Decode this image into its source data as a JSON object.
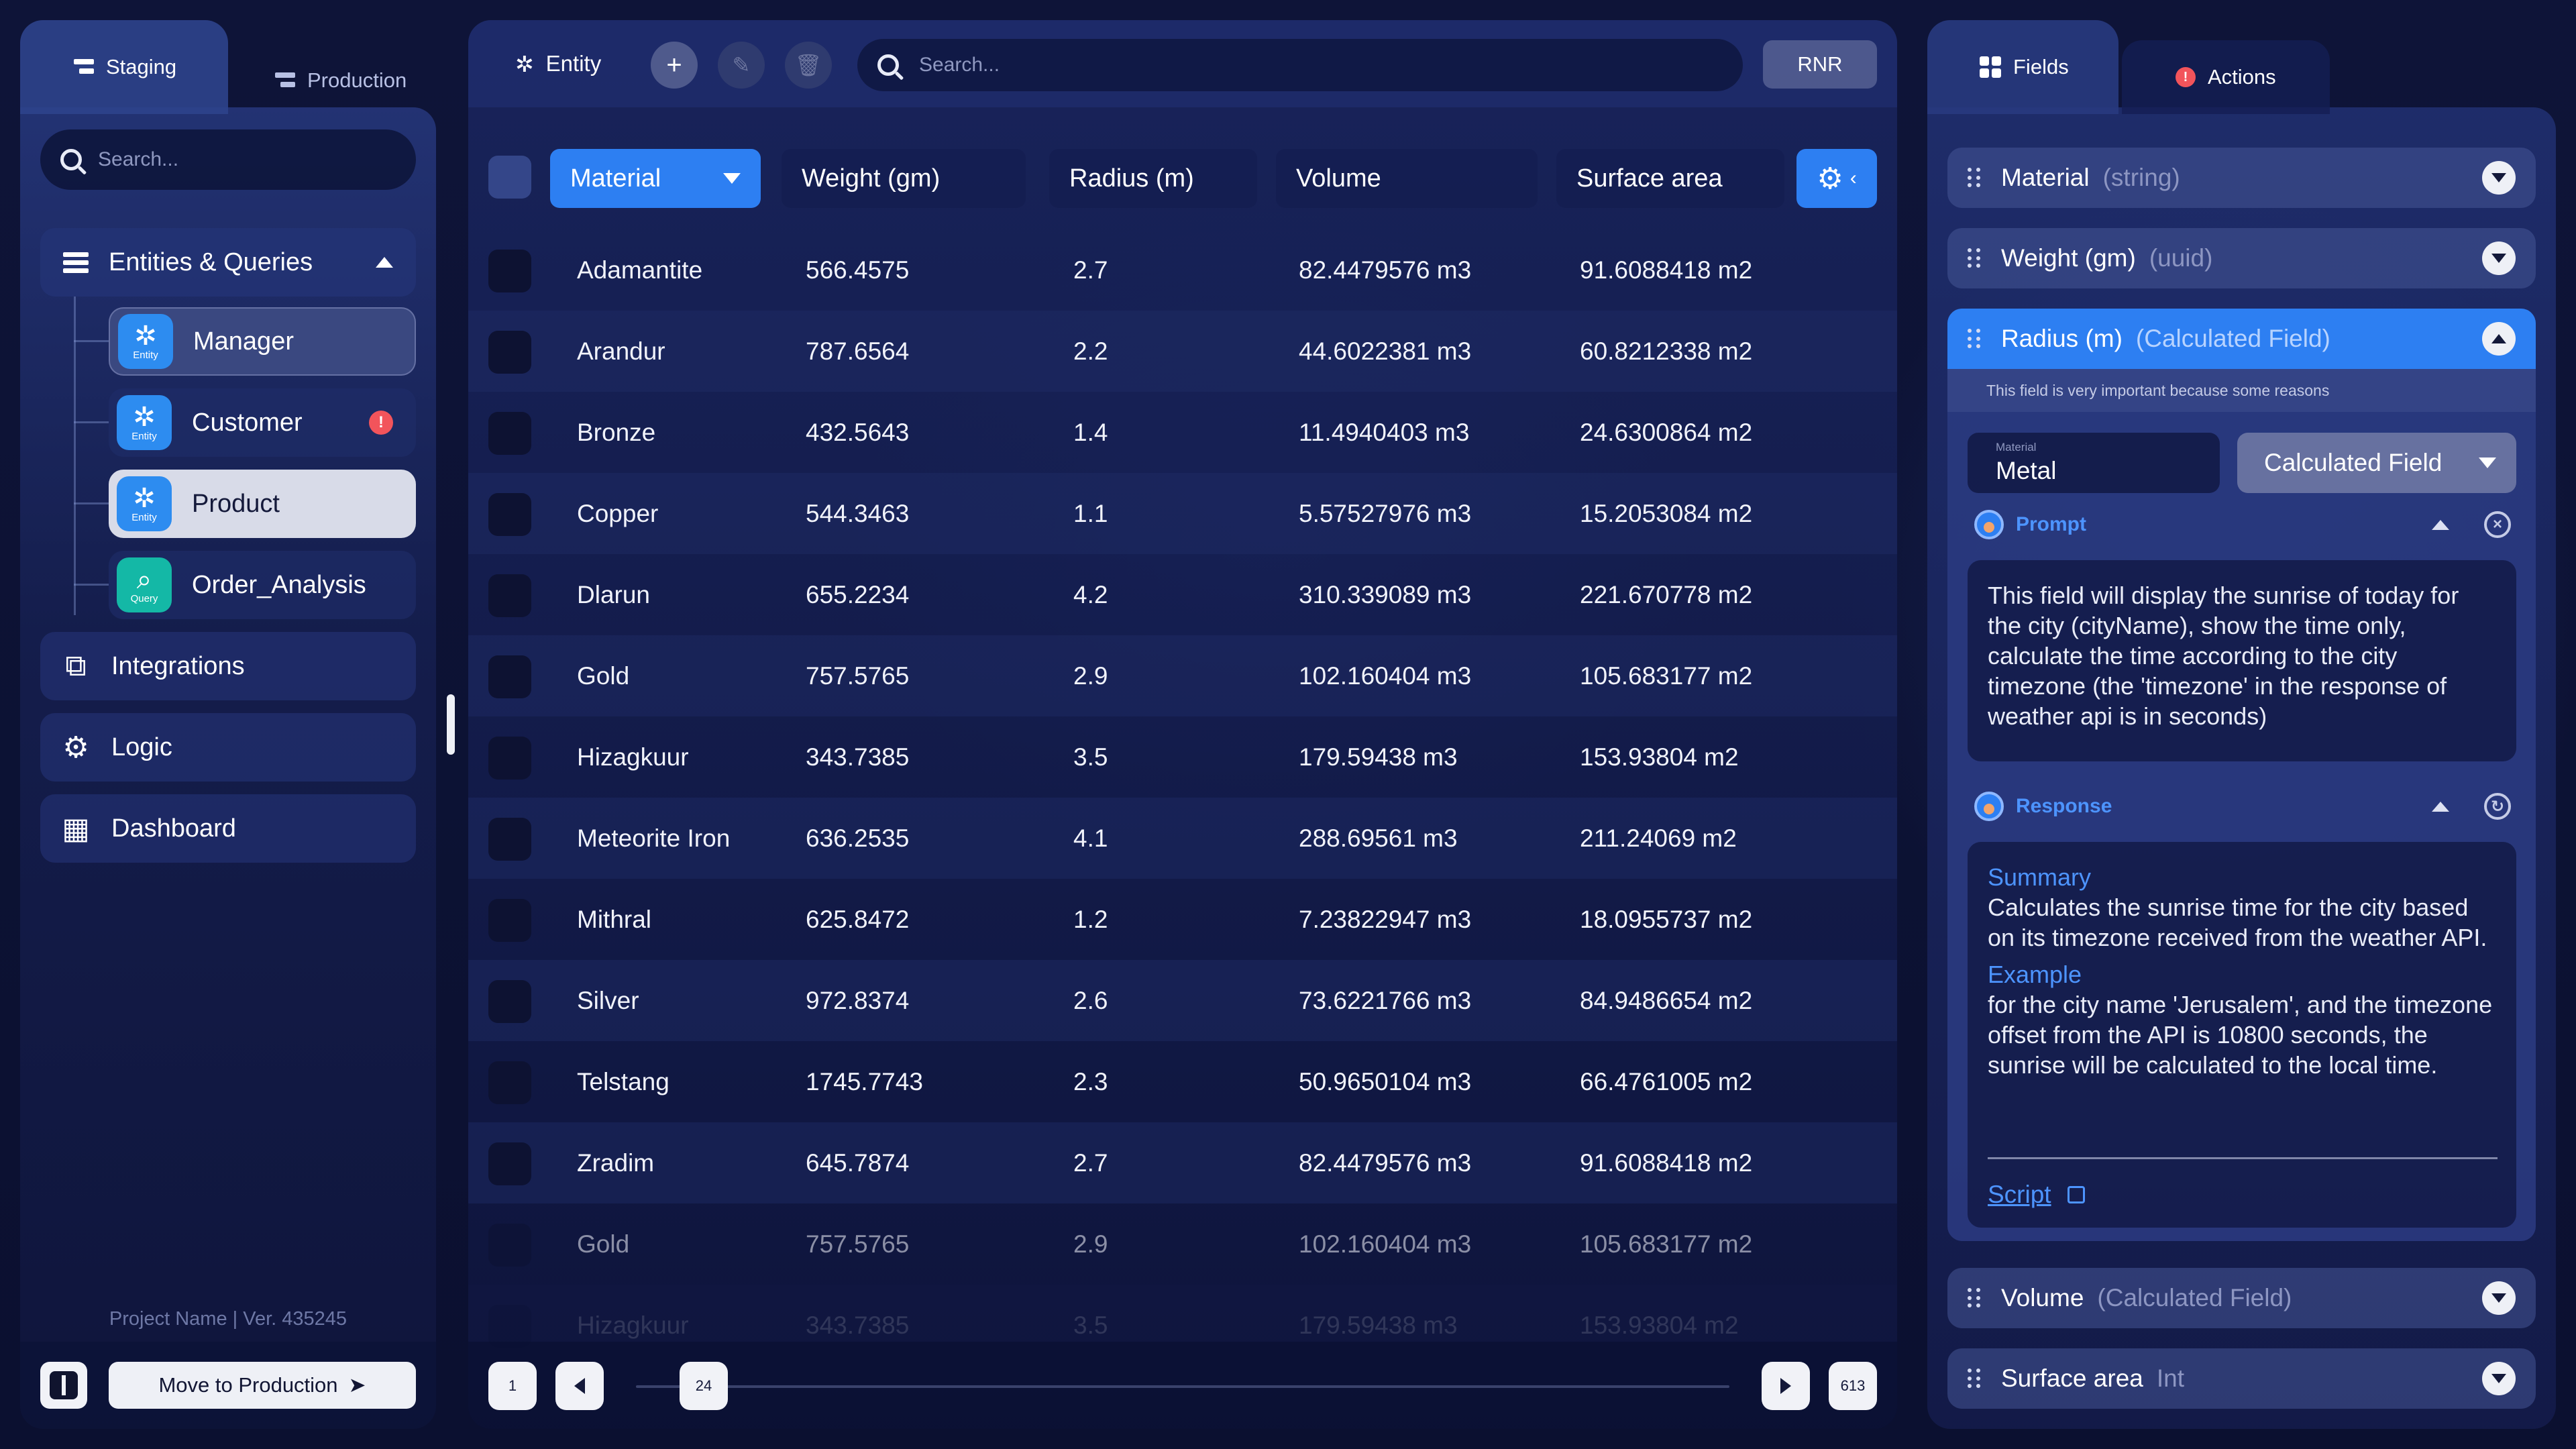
{
  "environments": {
    "staging": "Staging",
    "production": "Production"
  },
  "left": {
    "search_placeholder": "Search...",
    "group_label": "Entities & Queries",
    "tree": [
      {
        "label": "Manager",
        "badge": "Entity",
        "state": "selected"
      },
      {
        "label": "Customer",
        "badge": "Entity",
        "alert": "!"
      },
      {
        "label": "Product",
        "badge": "Entity",
        "state": "highlight"
      },
      {
        "label": "Order_Analysis",
        "badge": "Query"
      }
    ],
    "nav": [
      {
        "label": "Integrations",
        "icon": "integrations-icon"
      },
      {
        "label": "Logic",
        "icon": "gear-icon"
      },
      {
        "label": "Dashboard",
        "icon": "dashboard-icon"
      }
    ],
    "project": "Project Name | Ver. 435245",
    "move_button": "Move to Production"
  },
  "center": {
    "entity_label": "Entity",
    "search_placeholder": "Search...",
    "rnr_label": "RNR",
    "columns": [
      "Material",
      "Weight (gm)",
      "Radius (m)",
      "Volume",
      "Surface area"
    ],
    "rows": [
      [
        "Adamantite",
        "566.4575",
        "2.7",
        "82.4479576 m3",
        "91.6088418 m2"
      ],
      [
        "Arandur",
        "787.6564",
        "2.2",
        "44.6022381 m3",
        "60.8212338 m2"
      ],
      [
        "Bronze",
        "432.5643",
        "1.4",
        "11.4940403 m3",
        "24.6300864 m2"
      ],
      [
        "Copper",
        "544.3463",
        "1.1",
        "5.57527976 m3",
        "15.2053084 m2"
      ],
      [
        "Dlarun",
        "655.2234",
        "4.2",
        "310.339089 m3",
        "221.670778 m2"
      ],
      [
        "Gold",
        "757.5765",
        "2.9",
        "102.160404 m3",
        "105.683177 m2"
      ],
      [
        "Hizagkuur",
        "343.7385",
        "3.5",
        "179.59438 m3",
        "153.93804 m2"
      ],
      [
        "Meteorite Iron",
        "636.2535",
        "4.1",
        "288.69561 m3",
        "211.24069 m2"
      ],
      [
        "Mithral",
        "625.8472",
        "1.2",
        "7.23822947 m3",
        "18.0955737 m2"
      ],
      [
        "Silver",
        "972.8374",
        "2.6",
        "73.6221766 m3",
        "84.9486654 m2"
      ],
      [
        "Telstang",
        "1745.7743",
        "2.3",
        "50.9650104 m3",
        "66.4761005 m2"
      ],
      [
        "Zradim",
        "645.7874",
        "2.7",
        "82.4479576 m3",
        "91.6088418 m2"
      ],
      [
        "Gold",
        "757.5765",
        "2.9",
        "102.160404 m3",
        "105.683177 m2"
      ],
      [
        "Hizagkuur",
        "343.7385",
        "3.5",
        "179.59438 m3",
        "153.93804 m2"
      ]
    ],
    "pager": {
      "first": "1",
      "current": "24",
      "last": "613"
    }
  },
  "right": {
    "tabs": {
      "fields": "Fields",
      "actions": "Actions"
    },
    "fields": [
      {
        "name": "Material",
        "type": "(string)"
      },
      {
        "name": "Weight (gm)",
        "type": "(uuid)"
      },
      {
        "name": "Radius (m)",
        "type": "(Calculated Field)"
      },
      {
        "name": "Volume",
        "type": "(Calculated Field)"
      },
      {
        "name": "Surface area",
        "type": "Int"
      }
    ],
    "expanded": {
      "description": "This field is very important because some reasons",
      "material_label": "Material",
      "material_value": "Metal",
      "select_value": "Calculated Field",
      "prompt_title": "Prompt",
      "prompt_text": "This field will display the sunrise of today for the city (cityName), show the time only, calculate the time according to the city timezone (the 'timezone' in the response of weather api is in seconds)",
      "response_title": "Response",
      "summary_title": "Summary",
      "summary_text": "Calculates the sunrise time for the city based on its timezone received from the weather API.",
      "example_title": "Example",
      "example_text": "for the city name 'Jerusalem', and the timezone offset from the API is 10800 seconds, the sunrise will be calculated to the local time.",
      "script_label": "Script"
    }
  },
  "colors": {
    "accent": "#2d7ff2",
    "alert": "#f2545b",
    "query": "#14b8a6"
  }
}
